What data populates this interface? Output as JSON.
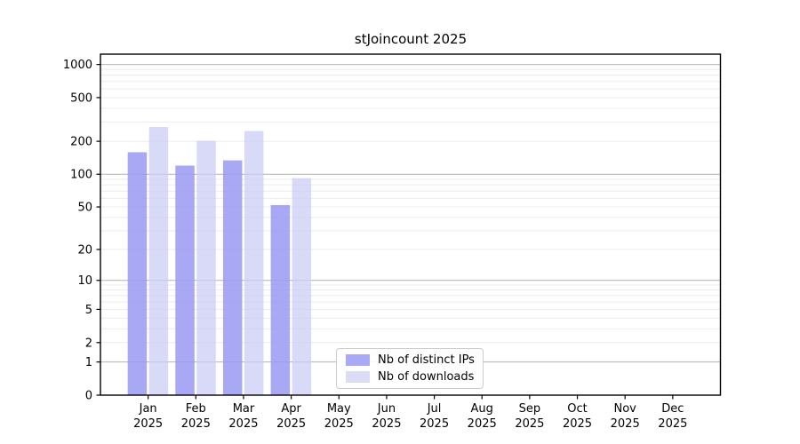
{
  "chart_data": {
    "type": "bar",
    "title": "stJoincount 2025",
    "categories": [
      "Jan",
      "Feb",
      "Mar",
      "Apr",
      "May",
      "Jun",
      "Jul",
      "Aug",
      "Sep",
      "Oct",
      "Nov",
      "Dec"
    ],
    "x_year_label": "2025",
    "series": [
      {
        "name": "Nb of distinct IPs",
        "color": "#9999f3",
        "opacity": 0.85,
        "legend_color": "#a9a9f5",
        "values": [
          159,
          120,
          134,
          52,
          null,
          null,
          null,
          null,
          null,
          null,
          null,
          null
        ]
      },
      {
        "name": "Nb of downloads",
        "color": "#ccccf5",
        "opacity": 0.75,
        "legend_color": "#dcdcf7",
        "values": [
          270,
          202,
          248,
          92,
          null,
          null,
          null,
          null,
          null,
          null,
          null,
          null
        ]
      }
    ],
    "yscale": "log1p",
    "ylim": [
      0,
      1240
    ],
    "yticks": [
      0,
      1,
      2,
      5,
      10,
      20,
      50,
      100,
      200,
      500,
      1000
    ],
    "major_gridlines": [
      1,
      10,
      100,
      1000
    ],
    "grid": true,
    "legend_position": "lower center",
    "axis_color": "#000000",
    "major_grid_color": "#b2b2b2",
    "minor_grid_color": "#ececec"
  }
}
